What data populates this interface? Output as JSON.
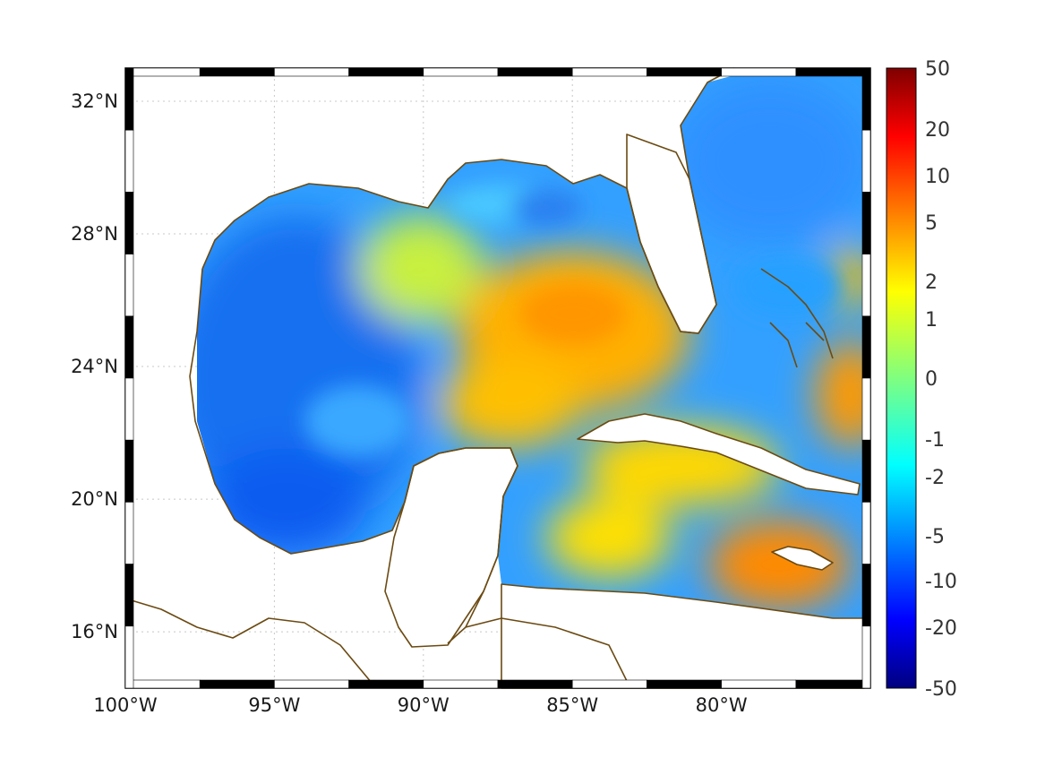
{
  "map": {
    "lon_range": [
      -100,
      -75
    ],
    "lat_range": [
      14.3,
      33.0
    ],
    "x_ticks": [
      {
        "lon": -100,
        "label": "100°W"
      },
      {
        "lon": -95,
        "label": "95°W"
      },
      {
        "lon": -90,
        "label": "90°W"
      },
      {
        "lon": -85,
        "label": "85°W"
      },
      {
        "lon": -80,
        "label": "80°W"
      }
    ],
    "y_ticks": [
      {
        "lat": 32,
        "label": "32°N"
      },
      {
        "lat": 28,
        "label": "28°N"
      },
      {
        "lat": 24,
        "label": "24°N"
      },
      {
        "lat": 20,
        "label": "20°N"
      },
      {
        "lat": 16,
        "label": "16°N"
      }
    ],
    "coastline_color": "#6b4a12",
    "grid": true
  },
  "colorbar": {
    "colormap": "jet",
    "labels": [
      "50",
      "20",
      "10",
      "5",
      "2",
      "1",
      "0",
      "-1",
      "-2",
      "-5",
      "-10",
      "-20",
      "-50"
    ],
    "range": [
      -50,
      50
    ]
  },
  "chart_data": {
    "type": "heatmap",
    "region": "Gulf of Mexico and Caribbean",
    "value_range": [
      -50,
      50
    ],
    "features": [
      {
        "area": "western Gulf of Mexico",
        "value": -5
      },
      {
        "area": "central-eastern Gulf of Mexico",
        "value": 3
      },
      {
        "area": "Caribbean south of Jamaica",
        "value": 4
      },
      {
        "area": "Atlantic east of Florida",
        "value": -3
      }
    ]
  }
}
